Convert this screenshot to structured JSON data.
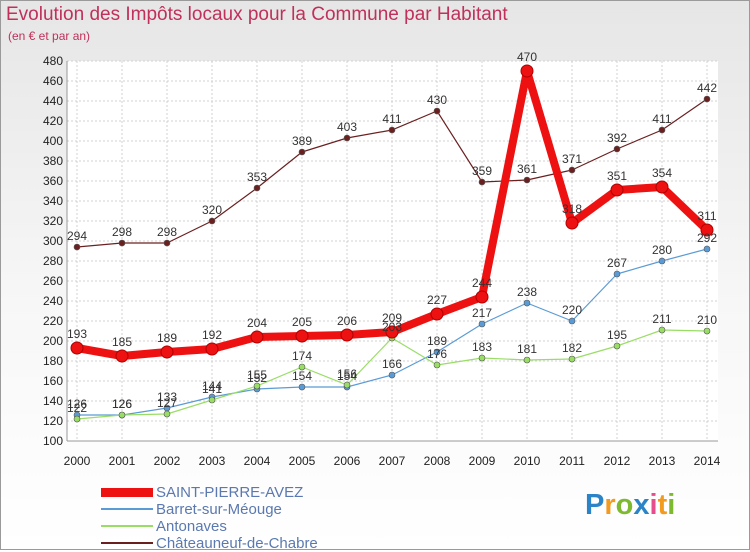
{
  "chart_data": {
    "type": "line",
    "title": "Evolution des Impôts locaux pour la Commune par Habitant",
    "subtitle": "(en € et par an)",
    "xlabel": "",
    "ylabel": "",
    "categories": [
      "2000",
      "2001",
      "2002",
      "2003",
      "2004",
      "2005",
      "2006",
      "2007",
      "2008",
      "2009",
      "2010",
      "2011",
      "2012",
      "2013",
      "2014"
    ],
    "ylim": [
      100,
      480
    ],
    "yticks": [
      100,
      120,
      140,
      160,
      180,
      200,
      220,
      240,
      260,
      280,
      300,
      320,
      340,
      360,
      380,
      400,
      420,
      440,
      460,
      480
    ],
    "grid": true,
    "legend_position": "bottom-left",
    "series": [
      {
        "name": "SAINT-PIERRE-AVEZ",
        "color": "#ee1111",
        "bold": true,
        "values": [
          193,
          185,
          189,
          192,
          204,
          205,
          206,
          209,
          227,
          244,
          470,
          318,
          351,
          354,
          311
        ],
        "labels": [
          "193",
          "185",
          "189",
          "192",
          "204",
          "205",
          "206",
          "209",
          "227",
          "244",
          "470",
          "318",
          "351",
          "354",
          "311"
        ]
      },
      {
        "name": "Barret-sur-Méouge",
        "color": "#5b9bd5",
        "bold": false,
        "values": [
          126,
          126,
          133,
          144,
          152,
          154,
          154,
          166,
          189,
          217,
          238,
          220,
          267,
          280,
          292
        ],
        "labels": [
          "126",
          "126",
          "133",
          "144",
          "152",
          "154",
          "154",
          "166",
          "189",
          "217",
          "238",
          "220",
          "267",
          "280",
          "292"
        ]
      },
      {
        "name": "Antonaves",
        "color": "#99dd66",
        "bold": false,
        "values": [
          122,
          126,
          127,
          141,
          155,
          174,
          156,
          203,
          176,
          183,
          181,
          182,
          195,
          211,
          210
        ],
        "labels": [
          "122",
          "126",
          "127",
          "141",
          "155",
          "174",
          "156",
          "203",
          "176",
          "183",
          "181",
          "182",
          "195",
          "211",
          "210"
        ]
      },
      {
        "name": "Châteauneuf-de-Chabre",
        "color": "#6b2020",
        "bold": false,
        "values": [
          294,
          298,
          298,
          320,
          353,
          389,
          403,
          411,
          430,
          359,
          361,
          371,
          392,
          411,
          442
        ],
        "labels": [
          "294",
          "298",
          "298",
          "320",
          "353",
          "389",
          "403",
          "411",
          "430",
          "359",
          "361",
          "371",
          "392",
          "411",
          "442"
        ]
      }
    ]
  },
  "logo": {
    "text": "Proxiti"
  }
}
